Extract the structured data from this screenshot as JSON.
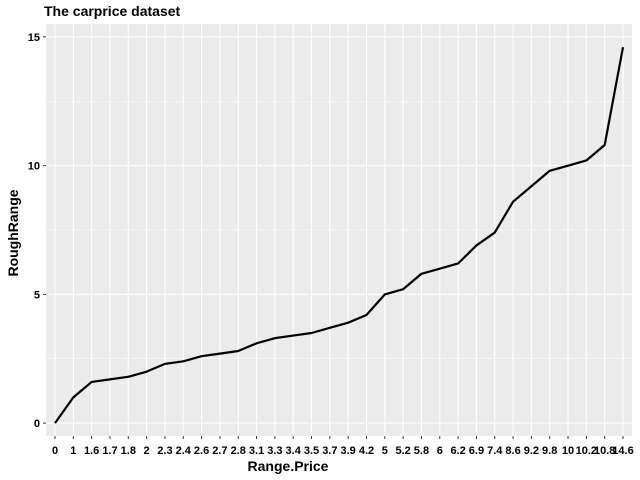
{
  "chart_data": {
    "type": "line",
    "title": "The carprice dataset",
    "xlabel": "Range.Price",
    "ylabel": "RoughRange",
    "x_ticks": [
      "0",
      "1",
      "1.6",
      "1.7",
      "1.8",
      "2",
      "2.3",
      "2.4",
      "2.6",
      "2.7",
      "2.8",
      "3.1",
      "3.3",
      "3.4",
      "3.5",
      "3.7",
      "3.9",
      "4.2",
      "5",
      "5.2",
      "5.8",
      "6",
      "6.2",
      "6.9",
      "7.4",
      "8.6",
      "9.2",
      "9.8",
      "10",
      "10.2",
      "10.8",
      "14.6"
    ],
    "y_ticks": [
      0,
      5,
      10,
      15
    ],
    "ylim": [
      -0.5,
      15.5
    ],
    "grid": true,
    "background_color": "#ebebeb",
    "grid_color": "#ffffff",
    "line_color": "#000000",
    "series": [
      {
        "x": [
          0,
          1,
          1.6,
          1.7,
          1.8,
          2,
          2.3,
          2.4,
          2.6,
          2.7,
          2.8,
          3.1,
          3.3,
          3.4,
          3.5,
          3.7,
          3.9,
          4.2,
          5,
          5.2,
          5.8,
          6,
          6.2,
          6.9,
          7.4,
          8.6,
          9.2,
          9.8,
          10,
          10.2,
          10.8,
          14.6
        ],
        "y": [
          0,
          1,
          1.6,
          1.7,
          1.8,
          2,
          2.3,
          2.4,
          2.6,
          2.7,
          2.8,
          3.1,
          3.3,
          3.4,
          3.5,
          3.7,
          3.9,
          4.2,
          5,
          5.2,
          5.8,
          6,
          6.2,
          6.9,
          7.4,
          8.6,
          9.2,
          9.8,
          10,
          10.2,
          10.8,
          14.6
        ]
      }
    ]
  }
}
